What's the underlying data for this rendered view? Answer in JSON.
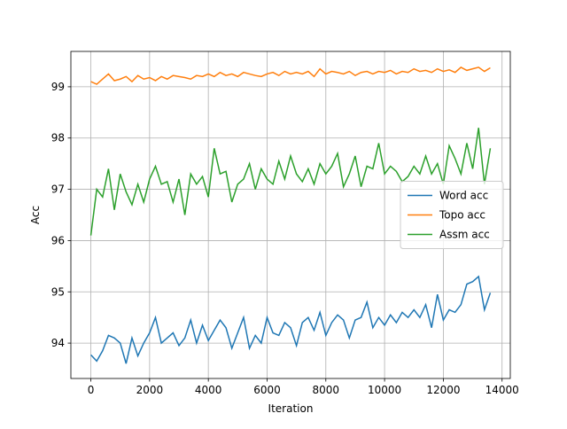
{
  "chart_data": {
    "type": "line",
    "xlabel": "Iteration",
    "ylabel": "Acc",
    "x": [
      0,
      200,
      400,
      600,
      800,
      1000,
      1200,
      1400,
      1600,
      1800,
      2000,
      2200,
      2400,
      2600,
      2800,
      3000,
      3200,
      3400,
      3600,
      3800,
      4000,
      4200,
      4400,
      4600,
      4800,
      5000,
      5200,
      5400,
      5600,
      5800,
      6000,
      6200,
      6400,
      6600,
      6800,
      7000,
      7200,
      7400,
      7600,
      7800,
      8000,
      8200,
      8400,
      8600,
      8800,
      9000,
      9200,
      9400,
      9600,
      9800,
      10000,
      10200,
      10400,
      10600,
      10800,
      11000,
      11200,
      11400,
      11600,
      11800,
      12000,
      12200,
      12400,
      12600,
      12800,
      13000,
      13200,
      13400,
      13600
    ],
    "series": [
      {
        "name": "Word acc",
        "color": "#1f77b4",
        "values": [
          93.77,
          93.65,
          93.85,
          94.15,
          94.1,
          94.0,
          93.6,
          94.1,
          93.75,
          94.0,
          94.2,
          94.5,
          94.0,
          94.1,
          94.2,
          93.95,
          94.1,
          94.45,
          94.0,
          94.35,
          94.05,
          94.25,
          94.45,
          94.3,
          93.9,
          94.2,
          94.5,
          93.9,
          94.15,
          94.0,
          94.5,
          94.2,
          94.15,
          94.4,
          94.3,
          93.95,
          94.4,
          94.5,
          94.25,
          94.6,
          94.15,
          94.4,
          94.55,
          94.45,
          94.1,
          94.45,
          94.5,
          94.8,
          94.3,
          94.5,
          94.35,
          94.55,
          94.4,
          94.6,
          94.5,
          94.65,
          94.5,
          94.75,
          94.3,
          94.95,
          94.45,
          94.65,
          94.6,
          94.75,
          95.15,
          95.2,
          95.3,
          94.65,
          94.98
        ]
      },
      {
        "name": "Topo acc",
        "color": "#ff7f0e",
        "values": [
          99.1,
          99.05,
          99.15,
          99.25,
          99.12,
          99.15,
          99.2,
          99.1,
          99.22,
          99.15,
          99.18,
          99.12,
          99.2,
          99.15,
          99.22,
          99.2,
          99.18,
          99.15,
          99.22,
          99.2,
          99.25,
          99.2,
          99.28,
          99.22,
          99.25,
          99.2,
          99.28,
          99.25,
          99.22,
          99.2,
          99.25,
          99.28,
          99.22,
          99.3,
          99.25,
          99.28,
          99.25,
          99.3,
          99.2,
          99.35,
          99.25,
          99.3,
          99.28,
          99.25,
          99.3,
          99.22,
          99.28,
          99.3,
          99.25,
          99.3,
          99.28,
          99.32,
          99.25,
          99.3,
          99.28,
          99.35,
          99.3,
          99.32,
          99.28,
          99.35,
          99.3,
          99.33,
          99.28,
          99.38,
          99.32,
          99.35,
          99.38,
          99.3,
          99.37
        ]
      },
      {
        "name": "Assm acc",
        "color": "#2ca02c",
        "values": [
          96.1,
          97.0,
          96.85,
          97.4,
          96.6,
          97.3,
          96.95,
          96.7,
          97.1,
          96.75,
          97.2,
          97.45,
          97.1,
          97.15,
          96.75,
          97.2,
          96.5,
          97.3,
          97.1,
          97.25,
          96.85,
          97.8,
          97.3,
          97.35,
          96.75,
          97.1,
          97.2,
          97.5,
          97.0,
          97.4,
          97.2,
          97.1,
          97.55,
          97.2,
          97.65,
          97.3,
          97.15,
          97.4,
          97.1,
          97.5,
          97.3,
          97.45,
          97.7,
          97.05,
          97.3,
          97.65,
          97.05,
          97.45,
          97.4,
          97.9,
          97.3,
          97.45,
          97.35,
          97.15,
          97.25,
          97.45,
          97.3,
          97.65,
          97.3,
          97.5,
          97.1,
          97.85,
          97.6,
          97.3,
          97.9,
          97.4,
          98.2,
          97.1,
          97.8
        ]
      }
    ],
    "xlim": [
      -680,
      14280
    ],
    "ylim": [
      93.31,
      99.69
    ],
    "xticks": [
      0,
      2000,
      4000,
      6000,
      8000,
      10000,
      12000,
      14000
    ],
    "yticks": [
      94,
      95,
      96,
      97,
      98,
      99
    ],
    "grid": true,
    "legend": "center right"
  }
}
